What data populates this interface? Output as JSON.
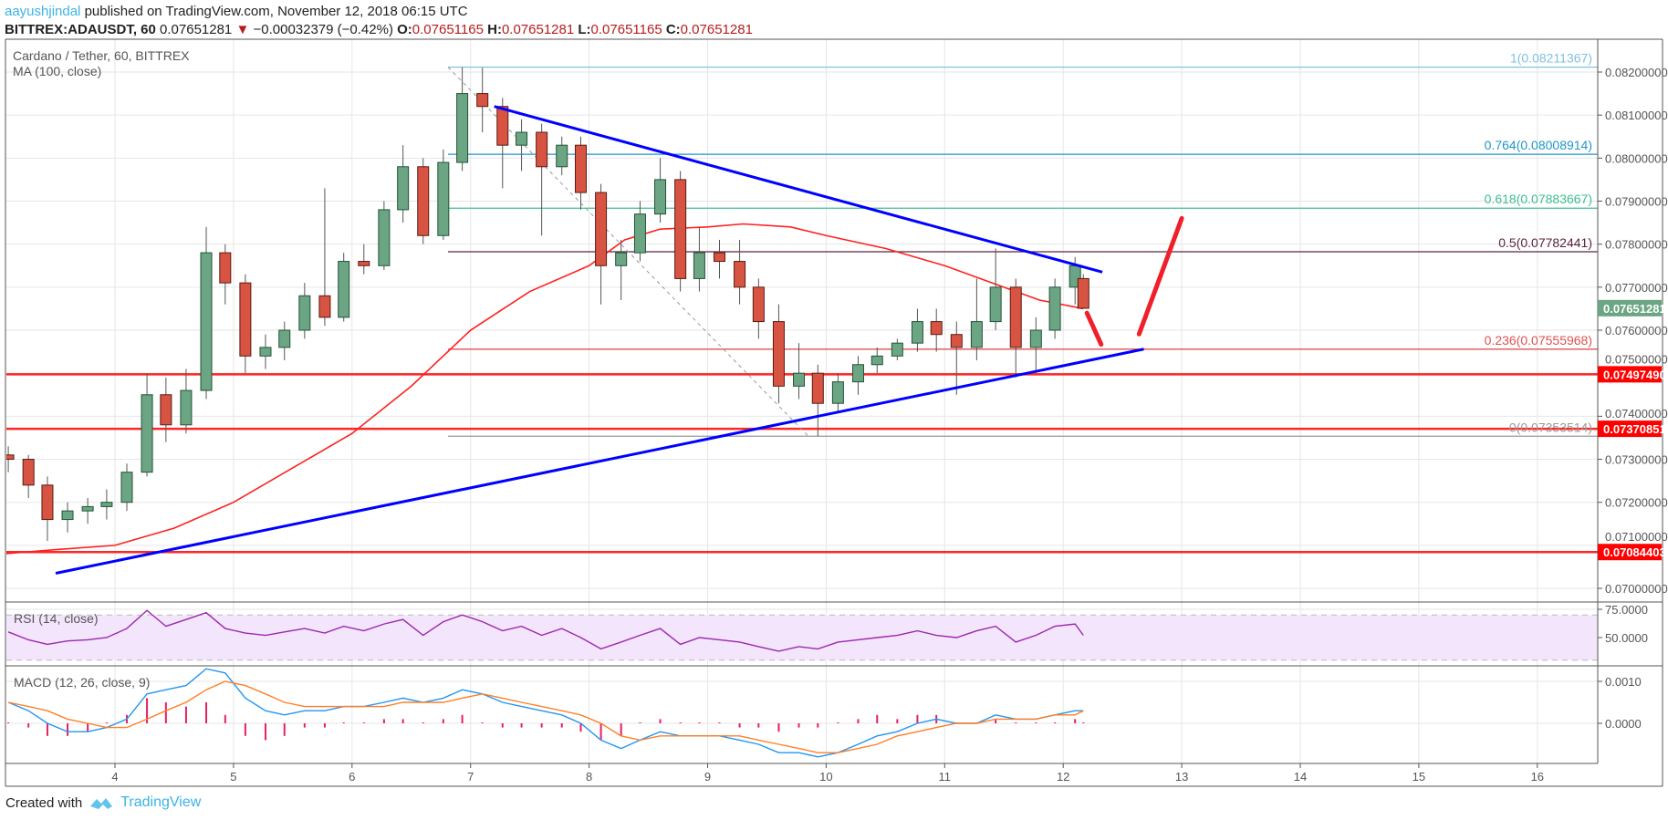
{
  "header": {
    "author": "aayushjindal",
    "published": " published on TradingView.com, November 12, 2018 06:15 UTC",
    "symbol": "BITTREX:ADAUSDT, 60",
    "price": "0.07651281",
    "change": "−0.00032379 (−0.42%)",
    "o_label": "O:",
    "o": "0.07651165",
    "h_label": "H:",
    "h": "0.07651281",
    "l_label": "L:",
    "l": "0.07651165",
    "c_label": "C:",
    "c": "0.07651281",
    "down_icon": "triangle-down-icon"
  },
  "footer": {
    "created_with": "Created with",
    "brand": "TradingView",
    "logo_icon": "tradingview-logo-icon"
  },
  "chart_data": {
    "type": "candlestick",
    "title": "Cardano / Tether, 60, BITTREX",
    "ma_label": "MA (100, close)",
    "colors": {
      "up": "#6ba583",
      "down": "#d75442",
      "ma": "#ff2020",
      "trendline": "#0000ff",
      "arrow": "#f0202a",
      "level": "#ff0000",
      "last_price": "#6ba583",
      "rsi": "#9c27b0",
      "rsi_band": "#f3e5fc",
      "macd": "#2196f3",
      "signal": "#ff7f27",
      "hist": "#e91e63",
      "grid": "#e6e6e6"
    },
    "price_ticks": [
      "0.07000000",
      "0.07100000",
      "0.07200000",
      "0.07300000",
      "0.07400000",
      "0.07500000",
      "0.07600000",
      "0.07700000",
      "0.07800000",
      "0.07900000",
      "0.08000000",
      "0.08100000",
      "0.08200000"
    ],
    "time_ticks": [
      "4",
      "5",
      "6",
      "7",
      "8",
      "9",
      "10",
      "11",
      "12",
      "13",
      "14",
      "15",
      "16"
    ],
    "ylim": [
      0.07,
      0.082
    ],
    "last_price": "0.07651281",
    "candles": [
      {
        "t": 3.1,
        "o": 0.0731,
        "h": 0.0733,
        "l": 0.0727,
        "c": 0.073
      },
      {
        "t": 3.27,
        "o": 0.073,
        "h": 0.0731,
        "l": 0.0721,
        "c": 0.0724
      },
      {
        "t": 3.43,
        "o": 0.0724,
        "h": 0.0726,
        "l": 0.0711,
        "c": 0.0716
      },
      {
        "t": 3.6,
        "o": 0.0716,
        "h": 0.072,
        "l": 0.0713,
        "c": 0.0718
      },
      {
        "t": 3.77,
        "o": 0.0718,
        "h": 0.0721,
        "l": 0.0715,
        "c": 0.0719
      },
      {
        "t": 3.93,
        "o": 0.0719,
        "h": 0.0723,
        "l": 0.0716,
        "c": 0.072
      },
      {
        "t": 4.1,
        "o": 0.072,
        "h": 0.0729,
        "l": 0.0718,
        "c": 0.0727
      },
      {
        "t": 4.27,
        "o": 0.0727,
        "h": 0.075,
        "l": 0.0726,
        "c": 0.0745
      },
      {
        "t": 4.43,
        "o": 0.0745,
        "h": 0.0749,
        "l": 0.0734,
        "c": 0.0738
      },
      {
        "t": 4.6,
        "o": 0.0738,
        "h": 0.0751,
        "l": 0.0736,
        "c": 0.0746
      },
      {
        "t": 4.77,
        "o": 0.0746,
        "h": 0.0784,
        "l": 0.0744,
        "c": 0.0778
      },
      {
        "t": 4.93,
        "o": 0.0778,
        "h": 0.078,
        "l": 0.0766,
        "c": 0.0771
      },
      {
        "t": 5.1,
        "o": 0.0771,
        "h": 0.0773,
        "l": 0.075,
        "c": 0.0754
      },
      {
        "t": 5.27,
        "o": 0.0754,
        "h": 0.0759,
        "l": 0.0751,
        "c": 0.0756
      },
      {
        "t": 5.43,
        "o": 0.0756,
        "h": 0.0762,
        "l": 0.0753,
        "c": 0.076
      },
      {
        "t": 5.6,
        "o": 0.076,
        "h": 0.0771,
        "l": 0.0758,
        "c": 0.0768
      },
      {
        "t": 5.77,
        "o": 0.0768,
        "h": 0.0793,
        "l": 0.0761,
        "c": 0.0763
      },
      {
        "t": 5.93,
        "o": 0.0763,
        "h": 0.0778,
        "l": 0.0762,
        "c": 0.0776
      },
      {
        "t": 6.1,
        "o": 0.0776,
        "h": 0.078,
        "l": 0.0773,
        "c": 0.0775
      },
      {
        "t": 6.27,
        "o": 0.0775,
        "h": 0.079,
        "l": 0.0774,
        "c": 0.0788
      },
      {
        "t": 6.43,
        "o": 0.0788,
        "h": 0.0803,
        "l": 0.0785,
        "c": 0.0798
      },
      {
        "t": 6.6,
        "o": 0.0798,
        "h": 0.08,
        "l": 0.078,
        "c": 0.0782
      },
      {
        "t": 6.77,
        "o": 0.0782,
        "h": 0.0802,
        "l": 0.0781,
        "c": 0.0799
      },
      {
        "t": 6.93,
        "o": 0.0799,
        "h": 0.08211,
        "l": 0.0797,
        "c": 0.0815
      },
      {
        "t": 7.1,
        "o": 0.0815,
        "h": 0.0821,
        "l": 0.0806,
        "c": 0.0812
      },
      {
        "t": 7.27,
        "o": 0.0812,
        "h": 0.0814,
        "l": 0.0793,
        "c": 0.0803
      },
      {
        "t": 7.43,
        "o": 0.0803,
        "h": 0.0809,
        "l": 0.0797,
        "c": 0.0806
      },
      {
        "t": 7.6,
        "o": 0.0806,
        "h": 0.0808,
        "l": 0.0782,
        "c": 0.0798
      },
      {
        "t": 7.77,
        "o": 0.0798,
        "h": 0.0805,
        "l": 0.0796,
        "c": 0.0803
      },
      {
        "t": 7.93,
        "o": 0.0803,
        "h": 0.0805,
        "l": 0.0788,
        "c": 0.0792
      },
      {
        "t": 8.1,
        "o": 0.0792,
        "h": 0.0794,
        "l": 0.0766,
        "c": 0.0775
      },
      {
        "t": 8.27,
        "o": 0.0775,
        "h": 0.0781,
        "l": 0.0767,
        "c": 0.0778
      },
      {
        "t": 8.43,
        "o": 0.0778,
        "h": 0.079,
        "l": 0.0776,
        "c": 0.0787
      },
      {
        "t": 8.6,
        "o": 0.0787,
        "h": 0.08,
        "l": 0.0785,
        "c": 0.0795
      },
      {
        "t": 8.77,
        "o": 0.0795,
        "h": 0.0797,
        "l": 0.0769,
        "c": 0.0772
      },
      {
        "t": 8.93,
        "o": 0.0772,
        "h": 0.0784,
        "l": 0.0769,
        "c": 0.0778
      },
      {
        "t": 9.1,
        "o": 0.0778,
        "h": 0.0781,
        "l": 0.0772,
        "c": 0.0776
      },
      {
        "t": 9.27,
        "o": 0.0776,
        "h": 0.0781,
        "l": 0.0766,
        "c": 0.077
      },
      {
        "t": 9.43,
        "o": 0.077,
        "h": 0.0772,
        "l": 0.0758,
        "c": 0.0762
      },
      {
        "t": 9.6,
        "o": 0.0762,
        "h": 0.0766,
        "l": 0.0743,
        "c": 0.0747
      },
      {
        "t": 9.77,
        "o": 0.0747,
        "h": 0.0757,
        "l": 0.0744,
        "c": 0.075
      },
      {
        "t": 9.93,
        "o": 0.075,
        "h": 0.0752,
        "l": 0.07354,
        "c": 0.0743
      },
      {
        "t": 10.1,
        "o": 0.0743,
        "h": 0.075,
        "l": 0.0741,
        "c": 0.0748
      },
      {
        "t": 10.27,
        "o": 0.0748,
        "h": 0.0754,
        "l": 0.0745,
        "c": 0.0752
      },
      {
        "t": 10.43,
        "o": 0.0752,
        "h": 0.0756,
        "l": 0.075,
        "c": 0.0754
      },
      {
        "t": 10.6,
        "o": 0.0754,
        "h": 0.0758,
        "l": 0.0753,
        "c": 0.0757
      },
      {
        "t": 10.77,
        "o": 0.0757,
        "h": 0.0765,
        "l": 0.0755,
        "c": 0.0762
      },
      {
        "t": 10.93,
        "o": 0.0762,
        "h": 0.0765,
        "l": 0.0755,
        "c": 0.0759
      },
      {
        "t": 11.1,
        "o": 0.0759,
        "h": 0.0762,
        "l": 0.0745,
        "c": 0.0756
      },
      {
        "t": 11.27,
        "o": 0.0756,
        "h": 0.0772,
        "l": 0.0753,
        "c": 0.0762
      },
      {
        "t": 11.43,
        "o": 0.0762,
        "h": 0.0779,
        "l": 0.076,
        "c": 0.077
      },
      {
        "t": 11.6,
        "o": 0.077,
        "h": 0.0772,
        "l": 0.0749,
        "c": 0.0756
      },
      {
        "t": 11.77,
        "o": 0.0756,
        "h": 0.0763,
        "l": 0.075,
        "c": 0.076
      },
      {
        "t": 11.93,
        "o": 0.076,
        "h": 0.0772,
        "l": 0.0758,
        "c": 0.077
      },
      {
        "t": 12.1,
        "o": 0.077,
        "h": 0.0777,
        "l": 0.0766,
        "c": 0.0775
      },
      {
        "t": 12.17,
        "o": 0.0772,
        "h": 0.0773,
        "l": 0.07651,
        "c": 0.07651
      }
    ],
    "ma100": [
      [
        3.05,
        0.0708
      ],
      [
        3.5,
        0.0709
      ],
      [
        4.0,
        0.071
      ],
      [
        4.5,
        0.0714
      ],
      [
        5.0,
        0.072
      ],
      [
        5.5,
        0.0728
      ],
      [
        6.0,
        0.0736
      ],
      [
        6.5,
        0.0747
      ],
      [
        7.0,
        0.076
      ],
      [
        7.5,
        0.0769
      ],
      [
        8.0,
        0.0775
      ],
      [
        8.3,
        0.0781
      ],
      [
        8.6,
        0.07835
      ],
      [
        9.0,
        0.0784
      ],
      [
        9.3,
        0.07847
      ],
      [
        9.7,
        0.0784
      ],
      [
        10.0,
        0.0782
      ],
      [
        10.5,
        0.0779
      ],
      [
        11.0,
        0.0775
      ],
      [
        11.5,
        0.077
      ],
      [
        11.8,
        0.0767
      ],
      [
        12.17,
        0.0765
      ]
    ],
    "fib_levels": [
      {
        "label": "1(0.08211367)",
        "value": 0.08211367,
        "color": "#7fc1e0"
      },
      {
        "label": "0.764(0.08008914)",
        "value": 0.08008914,
        "color": "#2196c9"
      },
      {
        "label": "0.618(0.07883667)",
        "value": 0.07883667,
        "color": "#3fbf8f"
      },
      {
        "label": "0.5(0.07782441)",
        "value": 0.07782441,
        "color": "#5a2340"
      },
      {
        "label": "0.236(0.07555968)",
        "value": 0.07555968,
        "color": "#e05050"
      },
      {
        "label": "0(0.07353514)",
        "value": 0.07353514,
        "color": "#999999"
      }
    ],
    "fib_start": 6.81,
    "fib_diagonal": [
      [
        6.81,
        0.08211367
      ],
      [
        9.85,
        0.07353514
      ]
    ],
    "horizontal_levels": [
      "0.07497490",
      "0.07370851",
      "0.07084403"
    ],
    "trendlines": [
      {
        "from": [
          3.5,
          0.07035
        ],
        "to": [
          12.68,
          0.07556
        ]
      },
      {
        "from": [
          7.2,
          0.0812
        ],
        "to": [
          12.33,
          0.07735
        ]
      }
    ],
    "arrows": [
      {
        "from": [
          12.2,
          0.0764
        ],
        "to": [
          12.32,
          0.07567
        ]
      },
      {
        "from": [
          12.64,
          0.07591
        ],
        "to": [
          13.0,
          0.0786
        ]
      }
    ],
    "rsi": {
      "label": "RSI (14, close)",
      "ticks": [
        "75.0000",
        "50.0000"
      ],
      "band": [
        30,
        70
      ],
      "values": [
        55,
        48,
        44,
        47,
        48,
        50,
        58,
        74,
        60,
        66,
        72,
        58,
        54,
        52,
        55,
        58,
        54,
        60,
        56,
        62,
        66,
        52,
        64,
        70,
        64,
        56,
        60,
        52,
        58,
        50,
        40,
        46,
        52,
        58,
        44,
        50,
        48,
        46,
        42,
        38,
        42,
        40,
        46,
        48,
        50,
        52,
        56,
        52,
        50,
        56,
        60,
        46,
        52,
        60,
        62,
        52
      ]
    },
    "macd": {
      "label": "MACD (12, 26, close, 9)",
      "ticks": [
        "0.0010",
        "0.0000"
      ],
      "macd": [
        0.0005,
        0.0003,
        0.0,
        -0.0002,
        -0.0002,
        -0.0001,
        0.0001,
        0.0007,
        0.0008,
        0.0009,
        0.0013,
        0.0012,
        0.0006,
        0.0003,
        0.0002,
        0.0003,
        0.0003,
        0.0004,
        0.0004,
        0.0005,
        0.0006,
        0.0005,
        0.0006,
        0.0008,
        0.0007,
        0.0005,
        0.0004,
        0.0003,
        0.0002,
        0.0,
        -0.0004,
        -0.0006,
        -0.0004,
        -0.0002,
        -0.0003,
        -0.0003,
        -0.0003,
        -0.0004,
        -0.0005,
        -0.0007,
        -0.0007,
        -0.0008,
        -0.0007,
        -0.0005,
        -0.0003,
        -0.0002,
        0.0,
        0.0001,
        0.0,
        0.0,
        0.0002,
        0.0001,
        0.0001,
        0.0002,
        0.0003,
        0.0003
      ],
      "signal": [
        0.0005,
        0.0004,
        0.0003,
        0.0001,
        0.0,
        -0.0001,
        -0.0001,
        0.0001,
        0.0003,
        0.0005,
        0.0008,
        0.001,
        0.0009,
        0.0007,
        0.0005,
        0.0004,
        0.0004,
        0.0004,
        0.0004,
        0.0004,
        0.0005,
        0.0005,
        0.0005,
        0.0006,
        0.0007,
        0.0006,
        0.0005,
        0.0004,
        0.0003,
        0.0002,
        0.0,
        -0.0003,
        -0.0004,
        -0.0003,
        -0.0003,
        -0.0003,
        -0.0003,
        -0.0003,
        -0.0004,
        -0.0005,
        -0.0006,
        -0.0007,
        -0.0007,
        -0.0006,
        -0.0005,
        -0.0003,
        -0.0002,
        -0.0001,
        0.0,
        0.0,
        0.0001,
        0.0001,
        0.0001,
        0.0002,
        0.0002,
        0.0003
      ],
      "histogram": [
        0,
        -0.0001,
        -0.0003,
        -0.0003,
        -0.0002,
        0,
        0.0002,
        0.0006,
        0.0005,
        0.0004,
        0.0005,
        0.0002,
        -0.0003,
        -0.0004,
        -0.0003,
        -0.0001,
        -0.0001,
        0,
        0,
        0.0001,
        0.0001,
        0,
        0.0001,
        0.0002,
        0,
        -0.0001,
        -0.0001,
        -0.0001,
        -0.0001,
        -0.0002,
        -0.0004,
        -0.0003,
        0,
        0.0001,
        0,
        0,
        0,
        -0.0001,
        -0.0001,
        -0.0002,
        -0.0001,
        -0.0001,
        0,
        0.0001,
        0.0002,
        0.0001,
        0.0002,
        0.0002,
        0,
        0,
        0.0001,
        0,
        0,
        0,
        0.0001,
        0
      ]
    }
  }
}
